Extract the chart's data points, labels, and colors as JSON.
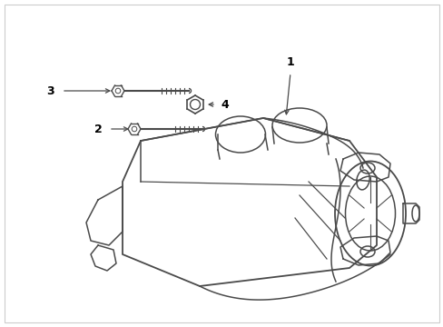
{
  "background_color": "#ffffff",
  "line_color": "#4a4a4a",
  "label_color": "#000000",
  "fig_width": 4.89,
  "fig_height": 3.6,
  "dpi": 100,
  "border_color": "#cccccc",
  "label_fontsize": 9
}
